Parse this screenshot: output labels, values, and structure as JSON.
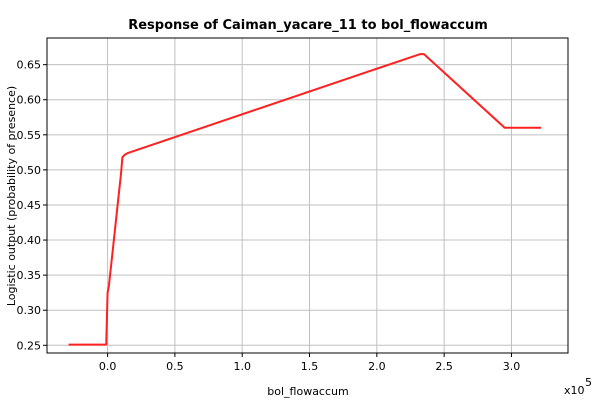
{
  "chart_data": {
    "type": "line",
    "title": "Response of Caiman_yacare_11 to bol_flowaccum",
    "xlabel": "bol_flowaccum",
    "ylabel": "Logistic output (probability of presence)",
    "x_exponent_base": "x10",
    "x_exponent_power": "5",
    "xlim": [
      -0.45,
      3.42
    ],
    "ylim": [
      0.239,
      0.688
    ],
    "x_ticks": [
      0.0,
      0.5,
      1.0,
      1.5,
      2.0,
      2.5,
      3.0
    ],
    "x_tick_labels": [
      "0.0",
      "0.5",
      "1.0",
      "1.5",
      "2.0",
      "2.5",
      "3.0"
    ],
    "y_ticks": [
      0.25,
      0.3,
      0.35,
      0.4,
      0.45,
      0.5,
      0.55,
      0.6,
      0.65
    ],
    "y_tick_labels": [
      "0.25",
      "0.30",
      "0.35",
      "0.40",
      "0.45",
      "0.50",
      "0.55",
      "0.60",
      "0.65"
    ],
    "grid": true,
    "series": [
      {
        "color": "#ff2020",
        "x": [
          -0.29,
          -0.01,
          -0.005,
          0.0,
          0.01,
          0.1,
          0.11,
          0.13,
          0.15,
          2.32,
          2.35,
          2.95,
          3.22
        ],
        "y": [
          0.251,
          0.251,
          0.29,
          0.325,
          0.335,
          0.495,
          0.518,
          0.522,
          0.524,
          0.665,
          0.665,
          0.56,
          0.56
        ]
      }
    ]
  }
}
